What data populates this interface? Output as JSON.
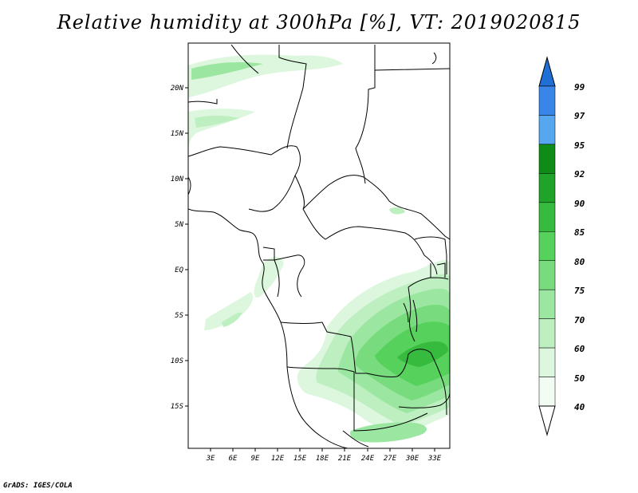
{
  "title": "Relative humidity at 300hPa [%], VT: 2019020815",
  "credit": "GrADS: IGES/COLA",
  "map": {
    "lat_labels": [
      "20N",
      "15N",
      "10N",
      "5N",
      "EQ",
      "5S",
      "10S",
      "15S"
    ],
    "lon_labels": [
      "3E",
      "6E",
      "9E",
      "12E",
      "15E",
      "18E",
      "21E",
      "24E",
      "27E",
      "30E",
      "33E"
    ]
  },
  "colorbar": {
    "levels": [
      "99",
      "97",
      "95",
      "92",
      "90",
      "85",
      "80",
      "75",
      "70",
      "60",
      "50",
      "40"
    ],
    "colors": {
      "99": "#1f6fd6",
      "97": "#3a86e8",
      "95": "#57a7f0",
      "92": "#0e8c17",
      "90": "#1fa329",
      "85": "#36bb3e",
      "80": "#55d15c",
      "75": "#78dc7e",
      "70": "#9be6a0",
      "60": "#bdefc0",
      "50": "#dcf7de",
      "40": "#f3fcf3"
    }
  }
}
